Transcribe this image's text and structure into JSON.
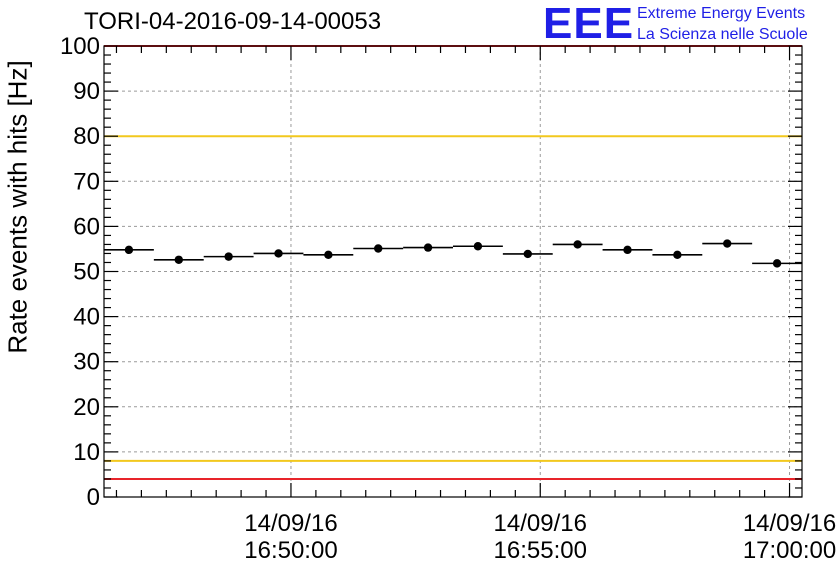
{
  "header": {
    "title": "TORI-04-2016-09-14-00053",
    "logo_text": "EEE",
    "logo_line1": "Extreme Energy Events",
    "logo_line2": "La Scienza nelle Scuole"
  },
  "colors": {
    "logo": "#1f1fe6",
    "red_line": "#e8242a",
    "yellow_line": "#f2c81e",
    "grid": "#9a9a9a",
    "points": "#000000"
  },
  "chart_data": {
    "type": "scatter",
    "ylabel": "Rate events with hits [Hz]",
    "xlabel": "",
    "ylim": [
      0,
      100
    ],
    "y_ticks": [
      0,
      10,
      20,
      30,
      40,
      50,
      60,
      70,
      80,
      90,
      100
    ],
    "x_range_minutes": [
      46.25,
      60.25
    ],
    "x_ticks": [
      {
        "minute": 50,
        "date": "14/09/16",
        "time": "16:50:00"
      },
      {
        "minute": 55,
        "date": "14/09/16",
        "time": "16:55:00"
      },
      {
        "minute": 60,
        "date": "14/09/16",
        "time": "17:00:00"
      }
    ],
    "grid": true,
    "reference_lines": [
      {
        "y": 100,
        "color": "red"
      },
      {
        "y": 80,
        "color": "yellow"
      },
      {
        "y": 8,
        "color": "yellow"
      },
      {
        "y": 4,
        "color": "red"
      }
    ],
    "bin_width_minutes": 1,
    "points": [
      {
        "x_minute": 46.75,
        "y": 54.8
      },
      {
        "x_minute": 47.75,
        "y": 52.6
      },
      {
        "x_minute": 48.75,
        "y": 53.3
      },
      {
        "x_minute": 49.75,
        "y": 54.0
      },
      {
        "x_minute": 50.75,
        "y": 53.7
      },
      {
        "x_minute": 51.75,
        "y": 55.1
      },
      {
        "x_minute": 52.75,
        "y": 55.3
      },
      {
        "x_minute": 53.75,
        "y": 55.6
      },
      {
        "x_minute": 54.75,
        "y": 53.9
      },
      {
        "x_minute": 55.75,
        "y": 56.0
      },
      {
        "x_minute": 56.75,
        "y": 54.8
      },
      {
        "x_minute": 57.75,
        "y": 53.7
      },
      {
        "x_minute": 58.75,
        "y": 56.2
      },
      {
        "x_minute": 59.75,
        "y": 51.8
      }
    ]
  }
}
